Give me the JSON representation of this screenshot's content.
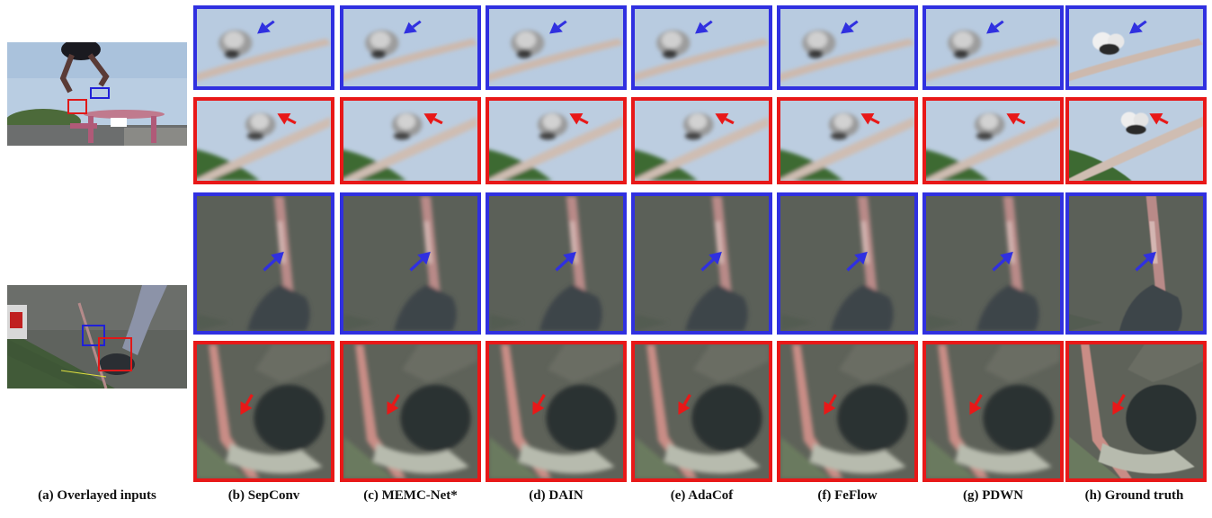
{
  "captions": [
    "(a) Overlayed inputs",
    "(b) SepConv",
    "(c) MEMC-Net*",
    "(d) DAIN",
    "(e) AdaCof",
    "(f) FeFlow",
    "(g) PDWN",
    "(h) Ground truth"
  ],
  "colors": {
    "blue_box": "#3030e0",
    "red_box": "#e81818",
    "sky": "#b8cbe0",
    "foliage": "#3f6a36",
    "gray_bg": "#5b6058",
    "pink_pole": "#c47a7a"
  },
  "rows": [
    {
      "scene": "squirrel-branch",
      "box": "blue"
    },
    {
      "scene": "squirrel-branch-foliage",
      "box": "red"
    },
    {
      "scene": "pole-gray",
      "box": "blue"
    },
    {
      "scene": "shoe-pole",
      "box": "red"
    }
  ]
}
